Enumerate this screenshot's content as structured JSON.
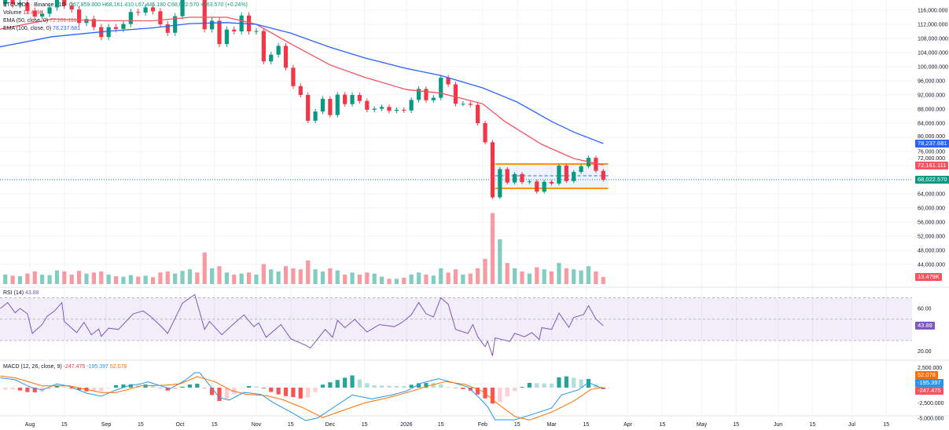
{
  "legend": {
    "symbol": "BTCUSDT · Binance · 1D",
    "open": "O67,859.000",
    "high": "H68,161.410",
    "low": "L67,445.180",
    "close": "C68,022.570",
    "change": "+163.570 (+0.24%)",
    "volume_label": "Volume",
    "volume_value": "13.479K",
    "ema50_label": "EMA (50, close, 0)",
    "ema50_value": "72,161.111",
    "ema100_label": "EMA (100, close, 0)",
    "ema100_value": "78,237.681",
    "rsi_label": "RSI (14)",
    "rsi_value": "43.88",
    "macd_label": "MACD (12, 26, close, 9)",
    "macd_hist_value": "-247.475",
    "macd_value": "-195.397",
    "macd_signal_value": "52.078"
  },
  "tags": {
    "ema100": "78,237.681",
    "ema50": "72,161.111",
    "last_price": "68,022.570",
    "volume": "13.479K",
    "rsi": "43.88",
    "macd_signal": "52.078",
    "macd": "-195.397",
    "macd_hist": "-247.475"
  },
  "colors": {
    "up": "#089981",
    "down": "#f23645",
    "ema50": "#f7525f",
    "ema100": "#2962ff",
    "rsi": "#7e57c2",
    "macd": "#2196f3",
    "signal": "#ff6d00",
    "range_box": "#ff9800",
    "range_mid": "#2962ff"
  },
  "chart_data": [
    {
      "type": "candlestick",
      "price_ticks": [
        "116,000.000",
        "112,000.000",
        "108,000.000",
        "104,000.000",
        "100,000.000",
        "96,000.000",
        "92,000.000",
        "88,000.000",
        "84,000.000",
        "80,000.000",
        "76,000.000",
        "72,000.000",
        "64,000.000",
        "60,000.000",
        "56,000.000",
        "52,000.000",
        "48,000.000",
        "44,000.000"
      ],
      "price_tick_values": [
        116000,
        112000,
        108000,
        104000,
        100000,
        96000,
        92000,
        88000,
        84000,
        80000,
        76000,
        72000,
        64000,
        60000,
        56000,
        52000,
        48000,
        44000
      ],
      "ylim": [
        40000,
        118900
      ],
      "grid": true,
      "dates": [
        "2025-07-19",
        "2025-07-22",
        "2025-07-25",
        "2025-07-28",
        "2025-07-31",
        "2025-08-03",
        "2025-08-06",
        "2025-08-09",
        "2025-08-12",
        "2025-08-15",
        "2025-08-18",
        "2025-08-21",
        "2025-08-24",
        "2025-08-27",
        "2025-08-30",
        "2025-09-02",
        "2025-09-05",
        "2025-09-08",
        "2025-09-11",
        "2025-09-14",
        "2025-09-17",
        "2025-09-20",
        "2025-09-23",
        "2025-09-26",
        "2025-09-29",
        "2025-10-02",
        "2025-10-05",
        "2025-10-08",
        "2025-10-11",
        "2025-10-14",
        "2025-10-17",
        "2025-10-20",
        "2025-10-23",
        "2025-10-26",
        "2025-10-29",
        "2025-11-01",
        "2025-11-04",
        "2025-11-07",
        "2025-11-10",
        "2025-11-13",
        "2025-11-16",
        "2025-11-19",
        "2025-11-22",
        "2025-11-25",
        "2025-11-28",
        "2025-12-01",
        "2025-12-04",
        "2025-12-07",
        "2025-12-10",
        "2025-12-13",
        "2025-12-16",
        "2025-12-19",
        "2025-12-22",
        "2025-12-25",
        "2025-12-28",
        "2025-12-31",
        "2026-01-03",
        "2026-01-06",
        "2026-01-09",
        "2026-01-12",
        "2026-01-15",
        "2026-01-18",
        "2026-01-21",
        "2026-01-24",
        "2026-01-27",
        "2026-01-30",
        "2026-02-02",
        "2026-02-05",
        "2026-02-08",
        "2026-02-11",
        "2026-02-14",
        "2026-02-17",
        "2026-02-20",
        "2026-02-23",
        "2026-02-26",
        "2026-03-01",
        "2026-03-04",
        "2026-03-07",
        "2026-03-10",
        "2026-03-13",
        "2026-03-16",
        "2026-03-19",
        "2026-03-22"
      ],
      "close": [
        117800,
        119000,
        117600,
        118000,
        115800,
        114200,
        115000,
        116800,
        120100,
        117300,
        116200,
        112400,
        113500,
        111200,
        108400,
        111200,
        110700,
        112100,
        115500,
        115300,
        116800,
        115700,
        112000,
        109600,
        114300,
        120500,
        123500,
        123300,
        110600,
        113000,
        106400,
        110500,
        110000,
        114500,
        110000,
        110100,
        101500,
        103400,
        105900,
        99700,
        94500,
        92000,
        84700,
        87300,
        90900,
        86300,
        92100,
        89400,
        92000,
        90300,
        87800,
        88100,
        88600,
        87500,
        87800,
        87600,
        90600,
        93700,
        90500,
        91200,
        96900,
        95000,
        89500,
        89500,
        89200,
        84000,
        78600,
        63000,
        71000,
        67200,
        69600,
        67300,
        67500,
        64600,
        67400,
        66900,
        72000,
        67600,
        70200,
        71800,
        74200,
        70500,
        68022.57
      ],
      "volume_k": [
        22,
        18,
        16,
        15,
        20,
        24,
        18,
        17,
        26,
        24,
        18,
        25,
        20,
        22,
        24,
        18,
        15,
        14,
        17,
        14,
        16,
        13,
        22,
        24,
        20,
        25,
        28,
        22,
        60,
        30,
        34,
        22,
        18,
        20,
        22,
        18,
        38,
        28,
        24,
        34,
        30,
        28,
        45,
        28,
        24,
        30,
        26,
        18,
        22,
        18,
        22,
        20,
        14,
        10,
        10,
        12,
        18,
        22,
        18,
        16,
        30,
        22,
        28,
        18,
        20,
        30,
        48,
        135,
        85,
        40,
        30,
        24,
        20,
        32,
        28,
        24,
        40,
        30,
        28,
        26,
        34,
        24,
        13.479
      ],
      "ema50": [
        [
          "2025-07-19",
          110500
        ],
        [
          "2025-08-10",
          113500
        ],
        [
          "2025-09-01",
          113000
        ],
        [
          "2025-09-20",
          113000
        ],
        [
          "2025-10-05",
          114000
        ],
        [
          "2025-10-20",
          114000
        ],
        [
          "2025-11-01",
          112000
        ],
        [
          "2025-11-15",
          106500
        ],
        [
          "2025-12-01",
          100500
        ],
        [
          "2025-12-15",
          97000
        ],
        [
          "2026-01-01",
          93500
        ],
        [
          "2026-01-15",
          92500
        ],
        [
          "2026-02-01",
          89500
        ],
        [
          "2026-02-10",
          84500
        ],
        [
          "2026-02-25",
          78000
        ],
        [
          "2026-03-10",
          74000
        ],
        [
          "2026-03-22",
          72161.111
        ]
      ],
      "ema100": [
        [
          "2025-07-19",
          105500
        ],
        [
          "2025-08-10",
          108500
        ],
        [
          "2025-09-01",
          110000
        ],
        [
          "2025-09-20",
          111000
        ],
        [
          "2025-10-05",
          112200
        ],
        [
          "2025-10-20",
          112500
        ],
        [
          "2025-11-01",
          112000
        ],
        [
          "2025-11-15",
          109500
        ],
        [
          "2025-12-01",
          105500
        ],
        [
          "2025-12-15",
          102500
        ],
        [
          "2026-01-01",
          99500
        ],
        [
          "2026-01-15",
          97500
        ],
        [
          "2026-02-01",
          94000
        ],
        [
          "2026-02-15",
          90000
        ],
        [
          "2026-03-01",
          84500
        ],
        [
          "2026-03-10",
          81500
        ],
        [
          "2026-03-22",
          78237.681
        ]
      ],
      "range_box": {
        "start": "2026-02-06",
        "end": "2026-03-24",
        "top": 72450,
        "bottom": 65550,
        "mid": 69100
      },
      "last_price": 68022.57
    },
    {
      "type": "line",
      "name": "RSI (14)",
      "ylim": [
        10,
        80
      ],
      "bands": [
        70,
        50,
        30
      ],
      "ticks": [
        "60.00",
        "20.00"
      ],
      "tick_values": [
        60,
        20
      ],
      "points": [
        [
          "2025-07-20",
          60
        ],
        [
          "2025-07-23",
          65.5
        ],
        [
          "2025-07-26",
          56
        ],
        [
          "2025-07-28",
          60
        ],
        [
          "2025-07-31",
          55
        ],
        [
          "2025-08-02",
          36.7
        ],
        [
          "2025-08-06",
          45
        ],
        [
          "2025-08-08",
          52.7
        ],
        [
          "2025-08-11",
          57.7
        ],
        [
          "2025-08-14",
          65.5
        ],
        [
          "2025-08-15",
          47.8
        ],
        [
          "2025-08-20",
          37.4
        ],
        [
          "2025-08-23",
          47
        ],
        [
          "2025-08-26",
          35.4
        ],
        [
          "2025-08-29",
          40.8
        ],
        [
          "2025-08-30",
          34
        ],
        [
          "2025-09-02",
          41.6
        ],
        [
          "2025-09-06",
          40.4
        ],
        [
          "2025-09-10",
          50.2
        ],
        [
          "2025-09-12",
          55
        ],
        [
          "2025-09-16",
          57.7
        ],
        [
          "2025-09-19",
          52.7
        ],
        [
          "2025-09-23",
          44
        ],
        [
          "2025-09-26",
          36.7
        ],
        [
          "2025-10-02",
          65
        ],
        [
          "2025-10-07",
          73
        ],
        [
          "2025-10-11",
          40.4
        ],
        [
          "2025-10-13",
          47.8
        ],
        [
          "2025-10-18",
          35.4
        ],
        [
          "2025-10-22",
          44
        ],
        [
          "2025-10-27",
          54
        ],
        [
          "2025-10-31",
          43
        ],
        [
          "2025-11-02",
          46.5
        ],
        [
          "2025-11-05",
          33
        ],
        [
          "2025-11-11",
          45
        ],
        [
          "2025-11-15",
          31.7
        ],
        [
          "2025-11-21",
          25.6
        ],
        [
          "2025-11-23",
          23
        ],
        [
          "2025-11-26",
          31.7
        ],
        [
          "2025-11-29",
          40.4
        ],
        [
          "2025-12-02",
          33
        ],
        [
          "2025-12-04",
          49
        ],
        [
          "2025-12-07",
          42
        ],
        [
          "2025-12-11",
          49.8
        ],
        [
          "2025-12-16",
          38
        ],
        [
          "2025-12-21",
          45
        ],
        [
          "2025-12-27",
          43
        ],
        [
          "2025-12-30",
          46.5
        ],
        [
          "2026-01-03",
          54
        ],
        [
          "2026-01-06",
          65.5
        ],
        [
          "2026-01-09",
          55
        ],
        [
          "2026-01-12",
          52
        ],
        [
          "2026-01-15",
          70
        ],
        [
          "2026-01-18",
          64
        ],
        [
          "2026-01-21",
          40.4
        ],
        [
          "2026-01-26",
          36.7
        ],
        [
          "2026-01-28",
          45
        ],
        [
          "2026-01-30",
          33.5
        ],
        [
          "2026-02-02",
          24.3
        ],
        [
          "2026-02-03",
          29.3
        ],
        [
          "2026-02-05",
          15.7
        ],
        [
          "2026-02-06",
          32.5
        ],
        [
          "2026-02-12",
          29.3
        ],
        [
          "2026-02-14",
          36.7
        ],
        [
          "2026-02-18",
          33.5
        ],
        [
          "2026-02-21",
          37.4
        ],
        [
          "2026-02-24",
          31
        ],
        [
          "2026-02-25",
          42
        ],
        [
          "2026-03-01",
          40.4
        ],
        [
          "2026-03-04",
          55.7
        ],
        [
          "2026-03-08",
          42.3
        ],
        [
          "2026-03-10",
          51.5
        ],
        [
          "2026-03-14",
          54.4
        ],
        [
          "2026-03-16",
          62.6
        ],
        [
          "2026-03-19",
          50.2
        ],
        [
          "2026-03-22",
          43.88
        ]
      ]
    },
    {
      "type": "line",
      "name": "MACD (12, 26, close, 9)",
      "ticks": [
        "2,500.000",
        "-2,500.000",
        "-5,000.000"
      ],
      "tick_values": [
        2500,
        -2500,
        -5000
      ],
      "macd": [
        [
          "2025-07-20",
          1600
        ],
        [
          "2025-07-26",
          1300
        ],
        [
          "2025-08-01",
          100
        ],
        [
          "2025-08-06",
          -400
        ],
        [
          "2025-08-12",
          600
        ],
        [
          "2025-08-17",
          200
        ],
        [
          "2025-08-24",
          -900
        ],
        [
          "2025-08-30",
          -1400
        ],
        [
          "2025-09-05",
          -400
        ],
        [
          "2025-09-10",
          300
        ],
        [
          "2025-09-15",
          600
        ],
        [
          "2025-09-18",
          940
        ],
        [
          "2025-09-27",
          -170
        ],
        [
          "2025-10-03",
          1150
        ],
        [
          "2025-10-07",
          2440
        ],
        [
          "2025-10-09",
          2440
        ],
        [
          "2025-10-17",
          -1620
        ],
        [
          "2025-10-21",
          -2050
        ],
        [
          "2025-10-27",
          -770
        ],
        [
          "2025-11-03",
          -1110
        ],
        [
          "2025-11-08",
          -2480
        ],
        [
          "2025-11-15",
          -3970
        ],
        [
          "2025-11-21",
          -5380
        ],
        [
          "2025-11-26",
          -4950
        ],
        [
          "2025-12-02",
          -3330
        ],
        [
          "2025-12-10",
          -1200
        ],
        [
          "2025-12-18",
          -1840
        ],
        [
          "2025-12-26",
          -1200
        ],
        [
          "2026-01-01",
          -560
        ],
        [
          "2026-01-07",
          720
        ],
        [
          "2026-01-14",
          1450
        ],
        [
          "2026-01-19",
          940
        ],
        [
          "2026-01-26",
          85
        ],
        [
          "2026-01-30",
          -1410
        ],
        [
          "2026-02-03",
          -3120
        ],
        [
          "2026-02-06",
          -5250
        ],
        [
          "2026-02-14",
          -5250
        ],
        [
          "2026-02-21",
          -4400
        ],
        [
          "2026-03-01",
          -3330
        ],
        [
          "2026-03-05",
          -1200
        ],
        [
          "2026-03-12",
          -340
        ],
        [
          "2026-03-16",
          850
        ],
        [
          "2026-03-22",
          -195.397
        ]
      ],
      "signal": [
        [
          "2025-07-20",
          1900
        ],
        [
          "2025-07-26",
          1600
        ],
        [
          "2025-08-01",
          900
        ],
        [
          "2025-08-06",
          300
        ],
        [
          "2025-08-12",
          300
        ],
        [
          "2025-08-17",
          300
        ],
        [
          "2025-08-24",
          -300
        ],
        [
          "2025-08-30",
          -800
        ],
        [
          "2025-09-05",
          -800
        ],
        [
          "2025-09-10",
          -300
        ],
        [
          "2025-09-15",
          300
        ],
        [
          "2025-09-25",
          400
        ],
        [
          "2025-10-01",
          600
        ],
        [
          "2025-10-08",
          1800
        ],
        [
          "2025-10-15",
          1000
        ],
        [
          "2025-10-22",
          -500
        ],
        [
          "2025-10-28",
          -1100
        ],
        [
          "2025-11-05",
          -1300
        ],
        [
          "2025-11-12",
          -2000
        ],
        [
          "2025-11-20",
          -3300
        ],
        [
          "2025-11-28",
          -4900
        ],
        [
          "2025-12-05",
          -3900
        ],
        [
          "2025-12-15",
          -2500
        ],
        [
          "2025-12-25",
          -1600
        ],
        [
          "2026-01-03",
          -600
        ],
        [
          "2026-01-10",
          300
        ],
        [
          "2026-01-17",
          1000
        ],
        [
          "2026-01-25",
          500
        ],
        [
          "2026-02-01",
          -600
        ],
        [
          "2026-02-07",
          -2600
        ],
        [
          "2026-02-14",
          -4700
        ],
        [
          "2026-02-20",
          -5300
        ],
        [
          "2026-03-01",
          -4000
        ],
        [
          "2026-03-10",
          -2200
        ],
        [
          "2026-03-17",
          -300
        ],
        [
          "2026-03-22",
          52.078
        ]
      ],
      "histogram_last": -247.475
    }
  ],
  "time_axis": [
    {
      "label": "Aug",
      "date": "2025-08-01"
    },
    {
      "label": "15",
      "date": "2025-08-15"
    },
    {
      "label": "Sep",
      "date": "2025-09-01"
    },
    {
      "label": "15",
      "date": "2025-09-15"
    },
    {
      "label": "Oct",
      "date": "2025-10-01"
    },
    {
      "label": "15",
      "date": "2025-10-15"
    },
    {
      "label": "Nov",
      "date": "2025-11-01"
    },
    {
      "label": "15",
      "date": "2025-11-15"
    },
    {
      "label": "Dec",
      "date": "2025-12-01"
    },
    {
      "label": "15",
      "date": "2025-12-15"
    },
    {
      "label": "2026",
      "date": "2026-01-01"
    },
    {
      "label": "15",
      "date": "2026-01-15"
    },
    {
      "label": "Feb",
      "date": "2026-02-01"
    },
    {
      "label": "15",
      "date": "2026-02-15"
    },
    {
      "label": "Mar",
      "date": "2026-03-01"
    },
    {
      "label": "15",
      "date": "2026-03-15"
    },
    {
      "label": "Apr",
      "date": "2026-04-01"
    },
    {
      "label": "15",
      "date": "2026-04-15"
    },
    {
      "label": "May",
      "date": "2026-05-01"
    },
    {
      "label": "15",
      "date": "2026-05-15"
    },
    {
      "label": "Jun",
      "date": "2026-06-01"
    },
    {
      "label": "15",
      "date": "2026-06-15"
    },
    {
      "label": "Jul",
      "date": "2026-07-01"
    },
    {
      "label": "15",
      "date": "2026-07-15"
    }
  ]
}
